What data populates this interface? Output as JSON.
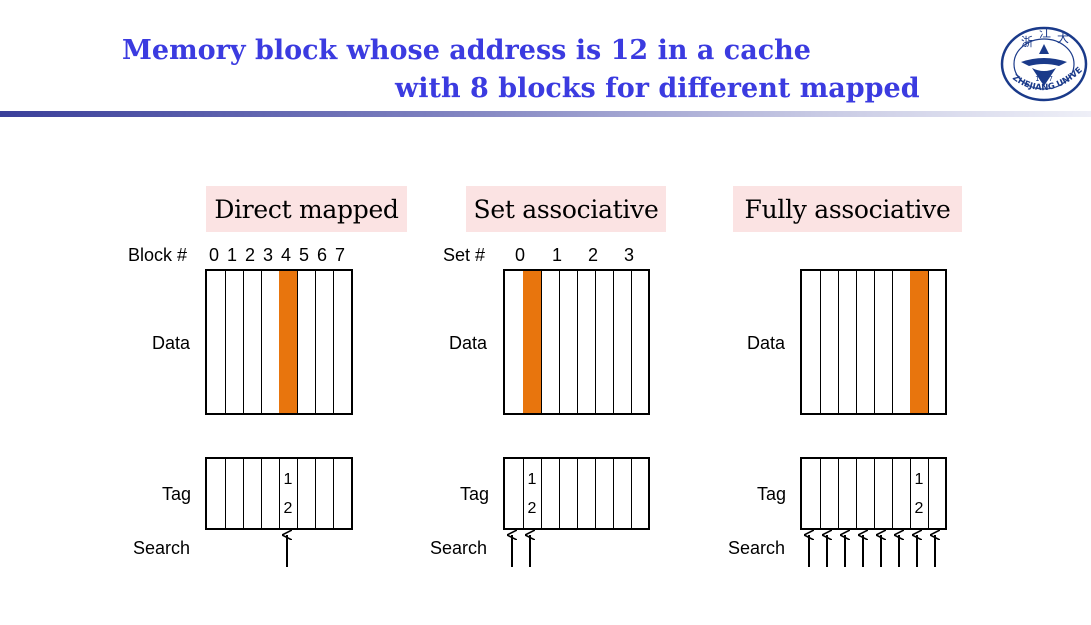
{
  "title": {
    "line1": "Memory block whose address is 12 in a cache",
    "line2": "with 8 blocks for different mapped"
  },
  "logo": {
    "name": "zhejiang-university-logo",
    "text": "ZHEJIANG UNIVERSITY",
    "year": "1897"
  },
  "colors": {
    "title": "#3b3be0",
    "highlight": "#e8750d",
    "label_bg": "#fbe3e3"
  },
  "diagrams": {
    "direct": {
      "label": "Direct mapped",
      "index_header": "Block #",
      "indices": [
        "0",
        "1",
        "2",
        "3",
        "4",
        "5",
        "6",
        "7"
      ],
      "data_label": "Data",
      "tag_label": "Tag",
      "search_label": "Search",
      "highlight_slot": 4,
      "tag_text": [
        "1",
        "2"
      ],
      "search_arrows": 1
    },
    "set": {
      "label": "Set associative",
      "index_header": "Set #",
      "indices": [
        "0",
        "1",
        "2",
        "3"
      ],
      "data_label": "Data",
      "tag_label": "Tag",
      "search_label": "Search",
      "highlight_slot": 1,
      "tag_text": [
        "1",
        "2"
      ],
      "search_arrows": 2
    },
    "fully": {
      "label": "Fully associative",
      "data_label": "Data",
      "tag_label": "Tag",
      "search_label": "Search",
      "highlight_slot": 7,
      "tag_text": [
        "1",
        "2"
      ],
      "search_arrows": 8
    }
  }
}
